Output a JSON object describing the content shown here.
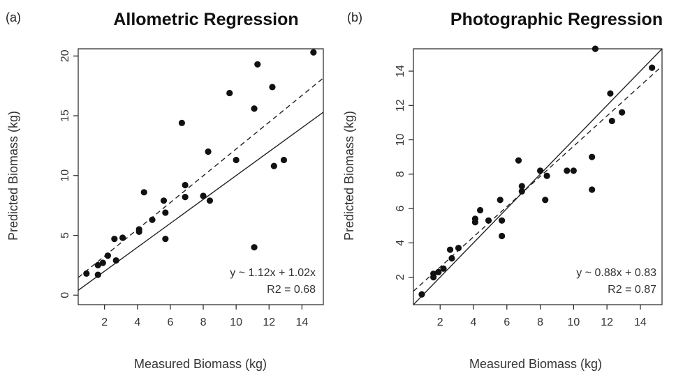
{
  "chart_data": [
    {
      "type": "scatter",
      "panel_label": "(a)",
      "title": "Allometric Regression",
      "xlabel": "Measured Biomass (kg)",
      "ylabel": "Predicted Biomass (kg)",
      "xlim": [
        0.4,
        15.3
      ],
      "ylim": [
        -0.8,
        20.6
      ],
      "x_ticks": [
        2,
        4,
        6,
        8,
        10,
        12,
        14
      ],
      "y_ticks": [
        0,
        5,
        10,
        15,
        20
      ],
      "y_tick_labels_rotated": true,
      "grid": false,
      "points": [
        {
          "x": 0.9,
          "y": 1.8
        },
        {
          "x": 1.6,
          "y": 1.7
        },
        {
          "x": 1.6,
          "y": 2.5
        },
        {
          "x": 1.9,
          "y": 2.7
        },
        {
          "x": 2.2,
          "y": 3.3
        },
        {
          "x": 2.6,
          "y": 4.7
        },
        {
          "x": 2.7,
          "y": 2.9
        },
        {
          "x": 3.1,
          "y": 4.8
        },
        {
          "x": 4.1,
          "y": 5.5
        },
        {
          "x": 4.1,
          "y": 5.3
        },
        {
          "x": 4.4,
          "y": 8.6
        },
        {
          "x": 4.9,
          "y": 6.3
        },
        {
          "x": 5.6,
          "y": 7.9
        },
        {
          "x": 5.7,
          "y": 4.7
        },
        {
          "x": 5.7,
          "y": 6.9
        },
        {
          "x": 6.7,
          "y": 14.4
        },
        {
          "x": 6.9,
          "y": 9.2
        },
        {
          "x": 6.9,
          "y": 8.2
        },
        {
          "x": 8.0,
          "y": 8.3
        },
        {
          "x": 8.3,
          "y": 12.0
        },
        {
          "x": 8.4,
          "y": 7.9
        },
        {
          "x": 9.6,
          "y": 16.9
        },
        {
          "x": 10.0,
          "y": 11.3
        },
        {
          "x": 11.1,
          "y": 15.6
        },
        {
          "x": 11.1,
          "y": 4.0
        },
        {
          "x": 11.3,
          "y": 19.3
        },
        {
          "x": 12.2,
          "y": 17.4
        },
        {
          "x": 12.3,
          "y": 10.8
        },
        {
          "x": 12.9,
          "y": 11.3
        },
        {
          "x": 14.7,
          "y": 20.3
        }
      ],
      "lines": [
        {
          "style": "solid",
          "description": "1:1 line",
          "slope": 1.0,
          "intercept": 0.0
        },
        {
          "style": "dashed",
          "description": "fitted regression",
          "slope": 1.12,
          "intercept": 1.02
        }
      ],
      "annotation": {
        "equation": "y ~ 1.12x + 1.02x",
        "r2": "R2 = 0.68"
      }
    },
    {
      "type": "scatter",
      "panel_label": "(b)",
      "title": "Photographic Regression",
      "xlabel": "Measured Biomass (kg)",
      "ylabel": "Predicted Biomass (kg)",
      "xlim": [
        0.4,
        15.3
      ],
      "ylim": [
        0.4,
        15.3
      ],
      "x_ticks": [
        2,
        4,
        6,
        8,
        10,
        12,
        14
      ],
      "y_ticks": [
        2,
        4,
        6,
        8,
        10,
        12,
        14
      ],
      "y_tick_labels_rotated": true,
      "grid": false,
      "points": [
        {
          "x": 0.9,
          "y": 1.0
        },
        {
          "x": 1.6,
          "y": 2.0
        },
        {
          "x": 1.6,
          "y": 2.2
        },
        {
          "x": 1.9,
          "y": 2.3
        },
        {
          "x": 2.2,
          "y": 2.5
        },
        {
          "x": 2.6,
          "y": 3.6
        },
        {
          "x": 2.7,
          "y": 3.1
        },
        {
          "x": 3.1,
          "y": 3.7
        },
        {
          "x": 4.1,
          "y": 5.4
        },
        {
          "x": 4.1,
          "y": 5.2
        },
        {
          "x": 4.4,
          "y": 5.9
        },
        {
          "x": 4.9,
          "y": 5.3
        },
        {
          "x": 5.6,
          "y": 6.5
        },
        {
          "x": 5.7,
          "y": 5.3
        },
        {
          "x": 5.7,
          "y": 4.4
        },
        {
          "x": 6.7,
          "y": 8.8
        },
        {
          "x": 6.9,
          "y": 7.3
        },
        {
          "x": 6.9,
          "y": 7.0
        },
        {
          "x": 8.0,
          "y": 8.2
        },
        {
          "x": 8.3,
          "y": 6.5
        },
        {
          "x": 8.4,
          "y": 7.9
        },
        {
          "x": 9.6,
          "y": 8.2
        },
        {
          "x": 10.0,
          "y": 8.2
        },
        {
          "x": 11.1,
          "y": 9.0
        },
        {
          "x": 11.1,
          "y": 7.1
        },
        {
          "x": 11.3,
          "y": 15.3
        },
        {
          "x": 12.2,
          "y": 12.7
        },
        {
          "x": 12.3,
          "y": 11.1
        },
        {
          "x": 12.9,
          "y": 11.6
        },
        {
          "x": 14.7,
          "y": 14.2
        }
      ],
      "lines": [
        {
          "style": "solid",
          "description": "1:1 line",
          "slope": 1.0,
          "intercept": 0.0
        },
        {
          "style": "dashed",
          "description": "fitted regression",
          "slope": 0.88,
          "intercept": 0.83
        }
      ],
      "annotation": {
        "equation": "y ~ 0.88x + 0.83",
        "r2": "R2 = 0.87"
      }
    }
  ]
}
